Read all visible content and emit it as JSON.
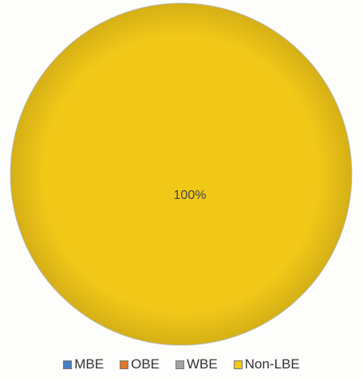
{
  "chart_data": {
    "type": "pie",
    "categories": [
      "MBE",
      "OBE",
      "WBE",
      "Non-LBE"
    ],
    "values": [
      0,
      0,
      0,
      100
    ],
    "colors": [
      "#4a7ebf",
      "#e0782e",
      "#a3a3a3",
      "#f2c818"
    ],
    "data_labels": [
      "",
      "",
      "",
      "100%"
    ],
    "legend_position": "bottom"
  }
}
